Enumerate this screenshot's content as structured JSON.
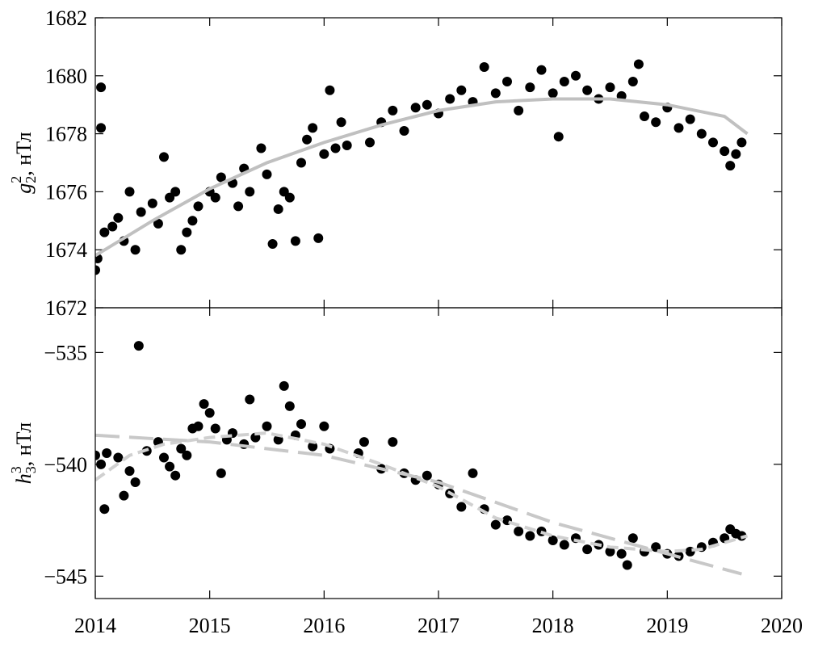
{
  "chart_data": [
    {
      "type": "scatter",
      "y_label": {
        "base": "g",
        "sub": "2",
        "sup": "2",
        "unit": ", нТл"
      },
      "xlim": [
        2014,
        2020
      ],
      "ylim": [
        1672,
        1682
      ],
      "yticks": [
        1672,
        1674,
        1676,
        1678,
        1680,
        1682
      ],
      "series": [
        {
          "mode": "markers",
          "color": "#000000",
          "x": [
            2014.0,
            2014.02,
            2014.05,
            2014.05,
            2014.08,
            2014.15,
            2014.2,
            2014.25,
            2014.3,
            2014.35,
            2014.4,
            2014.5,
            2014.55,
            2014.6,
            2014.65,
            2014.7,
            2014.75,
            2014.8,
            2014.85,
            2014.9,
            2015.0,
            2015.05,
            2015.1,
            2015.2,
            2015.25,
            2015.3,
            2015.35,
            2015.45,
            2015.5,
            2015.55,
            2015.6,
            2015.65,
            2015.7,
            2015.75,
            2015.8,
            2015.85,
            2015.9,
            2015.95,
            2016.0,
            2016.05,
            2016.1,
            2016.15,
            2016.2,
            2016.4,
            2016.5,
            2016.6,
            2016.7,
            2016.8,
            2016.9,
            2017.0,
            2017.1,
            2017.2,
            2017.3,
            2017.4,
            2017.5,
            2017.6,
            2017.7,
            2017.8,
            2017.9,
            2018.0,
            2018.05,
            2018.1,
            2018.2,
            2018.3,
            2018.4,
            2018.5,
            2018.6,
            2018.7,
            2018.75,
            2018.8,
            2018.9,
            2019.0,
            2019.1,
            2019.2,
            2019.3,
            2019.4,
            2019.5,
            2019.55,
            2019.6,
            2019.65
          ],
          "values": [
            1673.3,
            1673.7,
            1679.6,
            1678.2,
            1674.6,
            1674.8,
            1675.1,
            1674.3,
            1676.0,
            1674.0,
            1675.3,
            1675.6,
            1674.9,
            1677.2,
            1675.8,
            1676.0,
            1674.0,
            1674.6,
            1675.0,
            1675.5,
            1676.0,
            1675.8,
            1676.5,
            1676.3,
            1675.5,
            1676.8,
            1676.0,
            1677.5,
            1676.6,
            1674.2,
            1675.4,
            1676.0,
            1675.8,
            1674.3,
            1677.0,
            1677.8,
            1678.2,
            1674.4,
            1677.3,
            1679.5,
            1677.5,
            1678.4,
            1677.6,
            1677.7,
            1678.4,
            1678.8,
            1678.1,
            1678.9,
            1679.0,
            1678.7,
            1679.2,
            1679.5,
            1679.1,
            1680.3,
            1679.4,
            1679.8,
            1678.8,
            1679.6,
            1680.2,
            1679.4,
            1677.9,
            1679.8,
            1680.0,
            1679.5,
            1679.2,
            1679.6,
            1679.3,
            1679.8,
            1680.4,
            1678.6,
            1678.4,
            1678.9,
            1678.2,
            1678.5,
            1678.0,
            1677.7,
            1677.4,
            1676.9,
            1677.3,
            1677.7
          ]
        },
        {
          "mode": "line",
          "color": "#c0c0c0",
          "dash": "none",
          "x": [
            2014.0,
            2014.5,
            2015.0,
            2015.5,
            2016.0,
            2016.5,
            2017.0,
            2017.5,
            2018.0,
            2018.5,
            2019.0,
            2019.5,
            2019.7
          ],
          "values": [
            1673.8,
            1675.0,
            1676.1,
            1677.0,
            1677.7,
            1678.3,
            1678.8,
            1679.1,
            1679.2,
            1679.2,
            1679.0,
            1678.6,
            1678.0
          ]
        }
      ]
    },
    {
      "type": "scatter",
      "y_label": {
        "base": "h",
        "sub": "3",
        "sup": "3",
        "unit": ", нТл"
      },
      "xlim": [
        2014,
        2020
      ],
      "xticks": [
        2014,
        2015,
        2016,
        2017,
        2018,
        2019,
        2020
      ],
      "ylim": [
        -546,
        -533
      ],
      "yticks": [
        {
          "value": -535,
          "label": "−535"
        },
        {
          "value": -540,
          "label": "−540"
        },
        {
          "value": -545,
          "label": "−545"
        }
      ],
      "series": [
        {
          "mode": "markers",
          "color": "#000000",
          "x": [
            2014.0,
            2014.05,
            2014.08,
            2014.1,
            2014.2,
            2014.25,
            2014.3,
            2014.35,
            2014.38,
            2014.45,
            2014.55,
            2014.6,
            2014.65,
            2014.7,
            2014.75,
            2014.8,
            2014.85,
            2014.9,
            2014.95,
            2015.0,
            2015.05,
            2015.1,
            2015.15,
            2015.2,
            2015.3,
            2015.35,
            2015.4,
            2015.5,
            2015.6,
            2015.65,
            2015.7,
            2015.75,
            2015.8,
            2015.9,
            2016.0,
            2016.05,
            2016.3,
            2016.35,
            2016.5,
            2016.6,
            2016.7,
            2016.8,
            2016.9,
            2017.0,
            2017.1,
            2017.2,
            2017.3,
            2017.4,
            2017.5,
            2017.6,
            2017.7,
            2017.8,
            2017.9,
            2018.0,
            2018.1,
            2018.2,
            2018.3,
            2018.4,
            2018.5,
            2018.6,
            2018.65,
            2018.7,
            2018.8,
            2018.9,
            2019.0,
            2019.1,
            2019.2,
            2019.3,
            2019.4,
            2019.5,
            2019.55,
            2019.6,
            2019.65
          ],
          "values": [
            -539.6,
            -540.0,
            -542.0,
            -539.5,
            -539.7,
            -541.4,
            -540.3,
            -540.8,
            -534.7,
            -539.4,
            -539.0,
            -539.7,
            -540.1,
            -540.5,
            -539.3,
            -539.6,
            -538.4,
            -538.3,
            -537.3,
            -537.7,
            -538.4,
            -540.4,
            -538.9,
            -538.6,
            -539.1,
            -537.1,
            -538.8,
            -538.3,
            -538.9,
            -536.5,
            -537.4,
            -538.7,
            -538.2,
            -539.2,
            -538.3,
            -539.3,
            -539.5,
            -539.0,
            -540.2,
            -539.0,
            -540.4,
            -540.7,
            -540.5,
            -540.9,
            -541.3,
            -541.9,
            -540.4,
            -542.0,
            -542.7,
            -542.5,
            -543.0,
            -543.2,
            -543.0,
            -543.4,
            -543.6,
            -543.3,
            -543.8,
            -543.6,
            -543.9,
            -544.0,
            -544.5,
            -543.3,
            -543.9,
            -543.7,
            -544.0,
            -544.1,
            -543.9,
            -543.7,
            -543.5,
            -543.3,
            -542.9,
            -543.1,
            -543.2
          ]
        },
        {
          "mode": "line",
          "color": "#d0d0d0",
          "dash": "14,7",
          "x": [
            2014.0,
            2014.3,
            2014.6,
            2015.0,
            2015.5,
            2016.0,
            2016.5,
            2017.0,
            2017.5,
            2018.0,
            2018.5,
            2019.0,
            2019.3,
            2019.7
          ],
          "values": [
            -540.7,
            -539.6,
            -539.1,
            -538.8,
            -538.6,
            -539.1,
            -540.0,
            -541.0,
            -542.4,
            -543.2,
            -543.7,
            -543.9,
            -543.8,
            -543.2
          ]
        },
        {
          "mode": "line",
          "color": "#c8c8c8",
          "dash": "30,12",
          "x": [
            2014.0,
            2015.0,
            2016.0,
            2017.0,
            2018.0,
            2019.0,
            2019.65
          ],
          "values": [
            -538.7,
            -539.0,
            -539.6,
            -540.8,
            -542.6,
            -544.0,
            -544.9
          ]
        }
      ]
    }
  ]
}
